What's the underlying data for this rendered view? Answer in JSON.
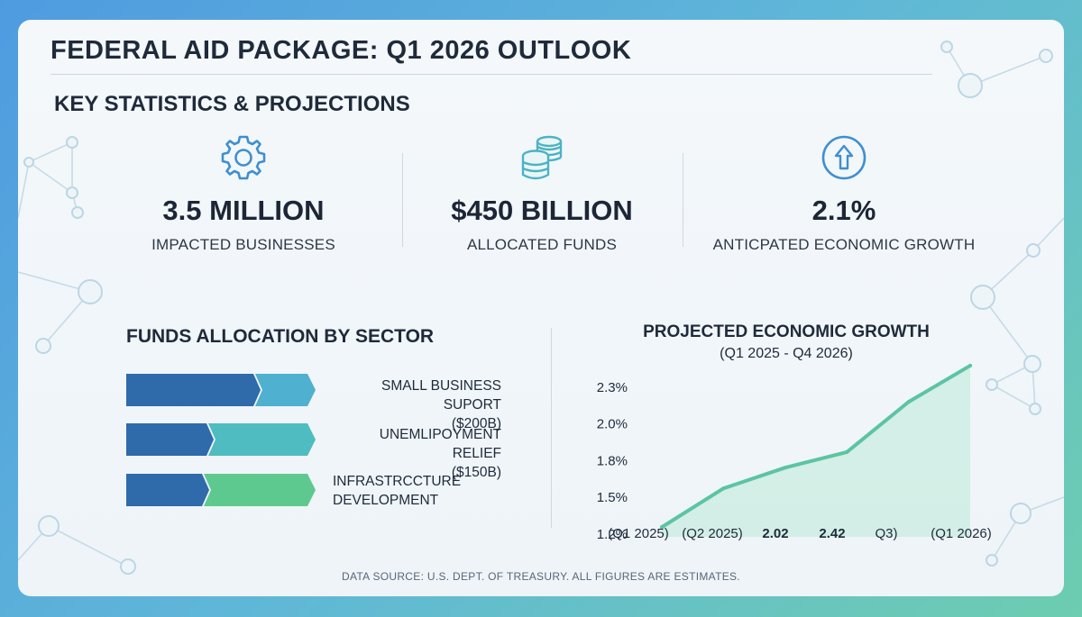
{
  "header": {
    "title": "FEDERAL AID PACKAGE: Q1 2026 OUTLOOK",
    "subtitle": "KEY STATISTICS & PROJECTIONS"
  },
  "stats": [
    {
      "icon": "gear-icon",
      "value": "3.5 MILLION",
      "label": "IMPACTED BUSINESSES"
    },
    {
      "icon": "coins-icon",
      "value": "$450 BILLION",
      "label": "ALLOCATED FUNDS"
    },
    {
      "icon": "arrow-up-circle-icon",
      "value": "2.1%",
      "label": "ANTICPATED ECONOMIC GROWTH"
    }
  ],
  "allocation": {
    "title": "FUNDS ALLOCATION BY SECTOR",
    "rows": [
      {
        "line1": "SMALL BUSINESS SUPORT",
        "line2": "($200B)",
        "fill_fraction": 0.7,
        "accent": "#4fb0cf",
        "align": "right"
      },
      {
        "line1": "UNEMLIPOYMENT RELIEF",
        "line2": "($150B)",
        "fill_fraction": 0.45,
        "accent": "#4ebcc0",
        "align": "right"
      },
      {
        "line1": "INFRASTRCCTURE",
        "line2": "DEVELOPMENT",
        "fill_fraction": 0.43,
        "accent": "#5ec98f",
        "align": "left"
      }
    ],
    "colors": {
      "primary": "#2f6aab"
    }
  },
  "chart_data": {
    "type": "area",
    "title": "PROJECTED ECONOMIC GROWTH",
    "subtitle": "(Q1 2025 - Q4 2026)",
    "categories": [
      "(Q1 2025)",
      "(Q2 2025)",
      "2.02",
      "2.42",
      "Q3)",
      "(Q1 2026)"
    ],
    "y_tick_labels": [
      "1.2%",
      "1.5%",
      "1.8%",
      "2.0%",
      "2.3%"
    ],
    "y_tick_levels": [
      0,
      1,
      2,
      3,
      4
    ],
    "values": [
      0.28,
      1.4,
      2.0,
      2.45,
      3.9,
      4.95
    ],
    "ylim": [
      0,
      5
    ],
    "colors": {
      "line": "#5cc4a2",
      "fill": "#c9ece0"
    }
  },
  "footer": "DATA SOURCE: U.S. DEPT. OF TREASURY. ALL FIGURES ARE ESTIMATES."
}
